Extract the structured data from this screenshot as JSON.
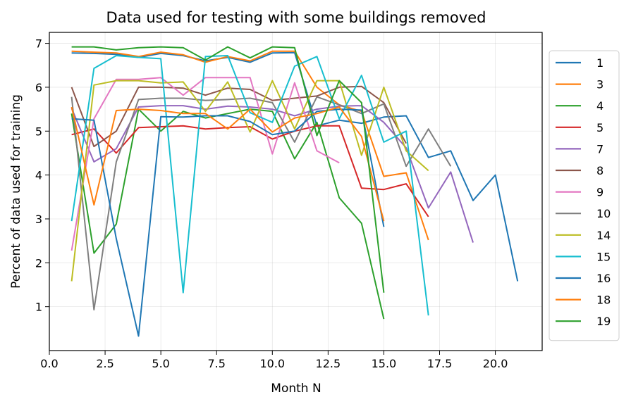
{
  "chart_data": {
    "type": "line",
    "title": "Data used for testing with some buildings removed",
    "xlabel": "Month N",
    "ylabel": "Percent of data used for training",
    "xlim": [
      0.0,
      22.1
    ],
    "ylim": [
      0.0,
      7.25
    ],
    "xticks": [
      0.0,
      2.5,
      5.0,
      7.5,
      10.0,
      12.5,
      15.0,
      17.5,
      20.0
    ],
    "xtick_labels": [
      "0.0",
      "2.5",
      "5.0",
      "7.5",
      "10.0",
      "12.5",
      "15.0",
      "17.5",
      "20.0"
    ],
    "yticks": [
      1,
      2,
      3,
      4,
      5,
      6,
      7
    ],
    "ytick_labels": [
      "1",
      "2",
      "3",
      "4",
      "5",
      "6",
      "7"
    ],
    "grid": true,
    "legend_position": "right, outside plot",
    "series": [
      {
        "name": "1",
        "color": "#1f77b4",
        "x": [
          1,
          2,
          3,
          4,
          5,
          6,
          7,
          8,
          9,
          10,
          11,
          12,
          13,
          14,
          15,
          16,
          17,
          18,
          19,
          20,
          21
        ],
        "y": [
          6.78,
          6.77,
          6.75,
          6.68,
          6.77,
          6.72,
          6.6,
          6.68,
          6.57,
          6.78,
          6.79,
          5.12,
          5.25,
          5.18,
          5.32,
          5.35,
          4.4,
          4.55,
          3.42,
          4.0,
          1.58
        ]
      },
      {
        "name": "3",
        "color": "#ff7f0e",
        "x": [
          1,
          2,
          3,
          4,
          5,
          6,
          7,
          8,
          9,
          10,
          11,
          12,
          13,
          14,
          15,
          16,
          17
        ],
        "y": [
          6.82,
          6.8,
          6.78,
          6.7,
          6.8,
          6.74,
          6.57,
          6.7,
          6.6,
          6.82,
          6.82,
          6.0,
          5.6,
          5.45,
          3.97,
          4.05,
          2.52
        ]
      },
      {
        "name": "4",
        "color": "#2ca02c",
        "x": [
          1,
          2,
          3,
          4,
          5,
          6,
          7,
          8,
          9,
          10,
          11,
          12,
          13,
          14,
          15
        ],
        "y": [
          5.4,
          2.22,
          2.88,
          5.5,
          5.0,
          5.45,
          5.3,
          5.4,
          5.5,
          5.45,
          4.37,
          5.2,
          3.48,
          2.9,
          0.72
        ]
      },
      {
        "name": "5",
        "color": "#d62728",
        "x": [
          1,
          2,
          3,
          4,
          5,
          6,
          7,
          8,
          9,
          10,
          11,
          12,
          13,
          14,
          15,
          16,
          17
        ],
        "y": [
          4.92,
          5.05,
          4.5,
          5.08,
          5.1,
          5.12,
          5.05,
          5.08,
          5.1,
          4.82,
          5.0,
          5.12,
          5.12,
          3.7,
          3.67,
          3.8,
          3.05
        ]
      },
      {
        "name": "7",
        "color": "#9467bd",
        "x": [
          1,
          2,
          3,
          4,
          5,
          6,
          7,
          8,
          9,
          10,
          11,
          12,
          13,
          14,
          15,
          16,
          17,
          18,
          19
        ],
        "y": [
          5.52,
          4.3,
          4.6,
          5.55,
          5.58,
          5.58,
          5.5,
          5.57,
          5.55,
          5.5,
          5.35,
          5.5,
          5.57,
          5.58,
          5.2,
          4.62,
          3.25,
          4.07,
          2.46
        ]
      },
      {
        "name": "8",
        "color": "#8c564b",
        "x": [
          1,
          2,
          3,
          4,
          5,
          6,
          7,
          8,
          9,
          10,
          11,
          12,
          13,
          14,
          15,
          16
        ],
        "y": [
          6.0,
          4.65,
          5.0,
          6.0,
          6.0,
          5.98,
          5.82,
          5.98,
          5.95,
          5.7,
          5.75,
          5.8,
          6.0,
          6.02,
          5.65,
          4.72
        ]
      },
      {
        "name": "9",
        "color": "#e377c2",
        "x": [
          1,
          2,
          3,
          4,
          5,
          6,
          7,
          8,
          9,
          10,
          11,
          12,
          13
        ],
        "y": [
          2.28,
          5.28,
          6.18,
          6.18,
          6.22,
          5.82,
          6.22,
          6.22,
          6.22,
          4.48,
          6.1,
          4.55,
          4.28
        ]
      },
      {
        "name": "10",
        "color": "#7f7f7f",
        "x": [
          1,
          2,
          3,
          4,
          5,
          6,
          7,
          8,
          9,
          10,
          11,
          12,
          13,
          14,
          15,
          16,
          17,
          18
        ],
        "y": [
          5.78,
          0.93,
          4.3,
          5.72,
          5.75,
          5.75,
          5.7,
          5.72,
          5.75,
          5.65,
          4.75,
          5.78,
          5.6,
          5.4,
          5.62,
          4.2,
          5.05,
          4.2
        ]
      },
      {
        "name": "14",
        "color": "#bcbd22",
        "x": [
          1,
          2,
          3,
          4,
          5,
          6,
          7,
          8,
          9,
          10,
          11,
          12,
          13,
          14,
          15,
          16,
          17
        ],
        "y": [
          1.58,
          6.05,
          6.15,
          6.15,
          6.1,
          6.12,
          5.45,
          6.12,
          4.98,
          6.15,
          5.05,
          6.15,
          6.15,
          4.45,
          6.0,
          4.55,
          4.1
        ]
      },
      {
        "name": "15",
        "color": "#17becf",
        "x": [
          1,
          2,
          3,
          4,
          5,
          6,
          7,
          8,
          9,
          10,
          11,
          12,
          13,
          14,
          15,
          16,
          17
        ],
        "y": [
          2.95,
          6.43,
          6.72,
          6.68,
          6.65,
          1.32,
          6.7,
          6.72,
          5.42,
          5.2,
          6.48,
          6.7,
          5.28,
          6.27,
          4.75,
          5.0,
          0.8
        ]
      },
      {
        "name": "16",
        "color": "#1f77b4",
        "x": [
          1,
          2,
          3,
          4,
          5,
          6,
          7,
          8,
          9,
          10,
          11,
          12,
          13,
          14,
          15
        ],
        "y": [
          5.28,
          5.25,
          2.55,
          0.33,
          5.33,
          5.32,
          5.35,
          5.35,
          5.22,
          4.92,
          5.0,
          5.45,
          5.5,
          5.48,
          2.82
        ]
      },
      {
        "name": "18",
        "color": "#ff7f0e",
        "x": [
          1,
          2,
          3,
          4,
          5,
          6,
          7,
          8,
          9,
          10,
          11,
          12,
          13,
          14,
          15
        ],
        "y": [
          5.55,
          3.32,
          5.47,
          5.5,
          5.47,
          5.4,
          5.4,
          5.05,
          5.5,
          4.98,
          5.3,
          5.4,
          5.55,
          4.88,
          2.95
        ]
      },
      {
        "name": "19",
        "color": "#2ca02c",
        "x": [
          1,
          2,
          3,
          4,
          5,
          6,
          7,
          8,
          9,
          10,
          11,
          12,
          13,
          14,
          15
        ],
        "y": [
          6.92,
          6.92,
          6.85,
          6.9,
          6.92,
          6.9,
          6.62,
          6.92,
          6.67,
          6.92,
          6.9,
          4.9,
          6.15,
          5.65,
          1.32
        ]
      }
    ]
  }
}
